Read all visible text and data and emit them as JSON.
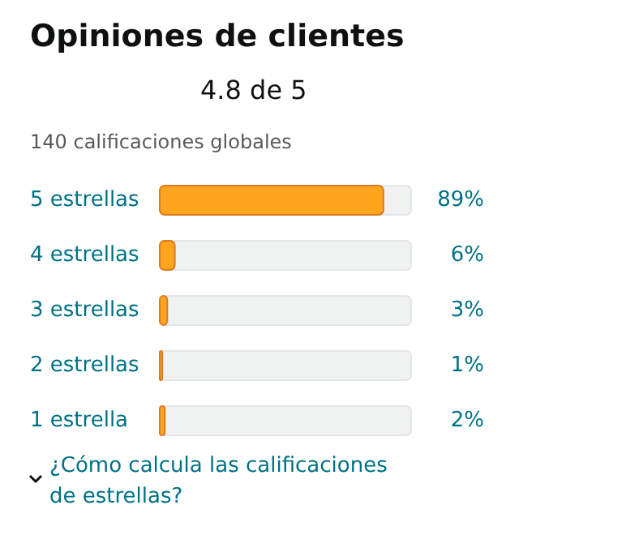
{
  "chart_data": {
    "type": "bar",
    "orientation": "horizontal",
    "title": "Opiniones de clientes",
    "annotations": [
      "4.8 de 5",
      "140 calificaciones globales",
      "¿Cómo calcula las calificaciones de estrellas?"
    ],
    "categories": [
      "5 estrellas",
      "4 estrellas",
      "3 estrellas",
      "2 estrellas",
      "1 estrella"
    ],
    "values": [
      89,
      6,
      3,
      1,
      2
    ],
    "value_labels": [
      "89%",
      "6%",
      "3%",
      "1%",
      "2%"
    ],
    "color": "#ffa41c",
    "xlim": [
      0,
      100
    ],
    "grid": false
  }
}
